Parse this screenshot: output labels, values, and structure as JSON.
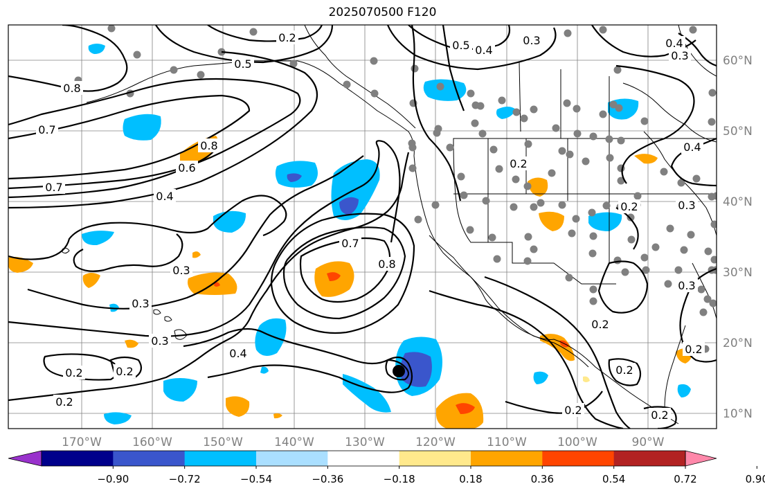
{
  "title": "2025070500 F120",
  "map": {
    "lon_ticks": [
      "170°W",
      "160°W",
      "150°W",
      "140°W",
      "130°W",
      "120°W",
      "110°W",
      "100°W",
      "90°W"
    ],
    "lat_ticks": [
      "60°N",
      "50°N",
      "40°N",
      "30°N",
      "20°N",
      "10°N"
    ],
    "contour_labels": [
      "0.2",
      "0.3",
      "0.4",
      "0.5",
      "0.6",
      "0.7",
      "0.8"
    ]
  },
  "colorbar": {
    "ticks": [
      "−0.90",
      "−0.72",
      "−0.54",
      "−0.36",
      "−0.18",
      "0.18",
      "0.36",
      "0.54",
      "0.72",
      "0.90"
    ],
    "colors": [
      "#9932cc",
      "#00008b",
      "#3a56cc",
      "#00bfff",
      "#aadfff",
      "#ffffff",
      "#ffe98c",
      "#ffa500",
      "#ff4500",
      "#b22222",
      "#ff88aa"
    ]
  },
  "colors": {
    "contour": "#000000",
    "station": "#808080",
    "coast": "#000000",
    "grid": "#808080"
  }
}
